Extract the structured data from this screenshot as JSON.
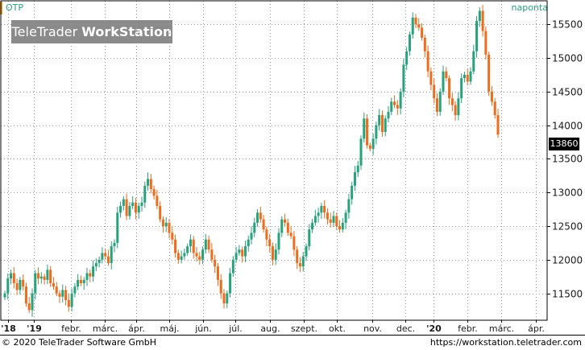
{
  "header": {
    "ticker": "OTP",
    "period": "naponta",
    "brand_regular": "TeleTrader ",
    "brand_bold": "WorkStation"
  },
  "footer": {
    "copyright": "© 2020 TeleTrader Software GmbH",
    "url": "https://workstation.teletrader.com"
  },
  "last_price_label": "13860",
  "colors": {
    "up": "#26a37a",
    "down": "#f26a1b",
    "grid": "#9a9a9a",
    "label": "#1a1a1a"
  },
  "chart_data": {
    "type": "candlestick",
    "title": "OTP",
    "interval": "naponta",
    "ylim": [
      11100,
      15850
    ],
    "y_ticks": [
      11500,
      12000,
      12500,
      13000,
      13500,
      14000,
      14500,
      15000,
      15500
    ],
    "x_tick_labels": [
      "'18",
      "'19",
      "febr.",
      "márc.",
      "ápr.",
      "máj.",
      "jún.",
      "júl.",
      "aug.",
      "szept.",
      "okt.",
      "nov.",
      "dec.",
      "'20",
      "febr.",
      "márc.",
      "ápr."
    ],
    "last_price": 13860,
    "grid": true,
    "series": [
      {
        "values": [
          11500,
          11720,
          11800,
          11650,
          11550,
          11700,
          11600,
          11350,
          11250,
          11500,
          11800,
          11720,
          11750,
          11700,
          11850,
          11650,
          11600,
          11500,
          11450,
          11550,
          11400,
          11300,
          11500,
          11600,
          11700,
          11650,
          11700,
          11800,
          11750,
          11900,
          11950,
          12000,
          12100,
          12050,
          11950,
          12200,
          12250,
          12700,
          12800,
          12900,
          12650,
          12800,
          12850,
          12700,
          12800,
          12850,
          13100,
          13200,
          13050,
          12950,
          12800,
          12600,
          12500,
          12550,
          12400,
          12300,
          12100,
          12000,
          12050,
          12100,
          12200,
          12300,
          12100,
          12050,
          12000,
          12150,
          12300,
          12150,
          12000,
          11900,
          11700,
          11500,
          11350,
          11500,
          11800,
          12000,
          12100,
          12150,
          12050,
          12200,
          12300,
          12400,
          12550,
          12700,
          12600,
          12450,
          12300,
          12200,
          12000,
          12150,
          12400,
          12600,
          12550,
          12400,
          12350,
          12150,
          11950,
          11900,
          12050,
          12200,
          12450,
          12550,
          12650,
          12700,
          12800,
          12700,
          12600,
          12550,
          12650,
          12500,
          12450,
          12550,
          12700,
          12900,
          13100,
          13300,
          13400,
          13800,
          14100,
          13700,
          13650,
          13800,
          14000,
          14150,
          13900,
          14100,
          14200,
          14350,
          14300,
          14250,
          14500,
          14900,
          15100,
          15350,
          15600,
          15500,
          15450,
          15300,
          15100,
          14800,
          14600,
          14400,
          14200,
          14500,
          14800,
          14700,
          14400,
          14300,
          14150,
          14400,
          14700,
          14750,
          14650,
          14800,
          15100,
          15550,
          15700,
          15400,
          15050,
          14500,
          14350,
          14150,
          13860
        ]
      }
    ]
  }
}
